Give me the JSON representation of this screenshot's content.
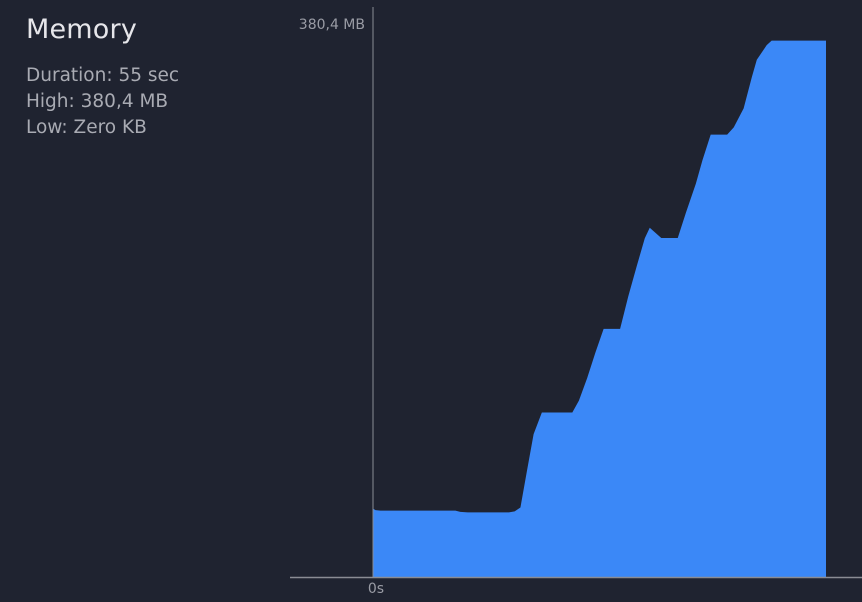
{
  "panel": {
    "title": "Memory",
    "stats": [
      {
        "label": "Duration",
        "value": "55 sec",
        "text": "Duration: 55 sec"
      },
      {
        "label": "High",
        "value": "380,4 MB",
        "text": "High: 380,4 MB"
      },
      {
        "label": "Low",
        "value": "Zero KB",
        "text": "Low: Zero KB"
      }
    ]
  },
  "colors": {
    "background": "#1f2330",
    "area_fill": "#3b88f7",
    "axis": "#8a8c94",
    "title_text": "#e6e6ea",
    "stat_text": "#a9abb3"
  },
  "chart_data": {
    "type": "area",
    "title": "",
    "xlabel": "",
    "ylabel": "",
    "x_tick_labels": [
      "0s"
    ],
    "y_tick_labels": [
      "380,4 MB"
    ],
    "ylim": [
      0,
      380.4
    ],
    "xlim": [
      0,
      55
    ],
    "y_unit": "MB",
    "grid": false,
    "series": [
      {
        "x": [
          0,
          0.3,
          0.9,
          2.0,
          4.0,
          6.0,
          8.0,
          10.0,
          10.6,
          11.5,
          13.0,
          15.0,
          16.5,
          17.2,
          17.9,
          18.7,
          19.5,
          20.5,
          22.0,
          23.4,
          24.2,
          25.0,
          26.0,
          27.0,
          28.0,
          28.6,
          30.0,
          31.0,
          32.0,
          33.0,
          33.6,
          35.0,
          36.0,
          37.0,
          38.0,
          39.2,
          40.0,
          41.0,
          42.0,
          43.0,
          43.8,
          45.0,
          46.0,
          46.6,
          47.8,
          48.4,
          49.6,
          52.0,
          55.0
        ],
        "values": [
          47.2,
          46.2,
          45.8,
          45.8,
          45.8,
          45.8,
          45.8,
          45.8,
          45.0,
          44.6,
          44.6,
          44.6,
          44.6,
          45.3,
          48.0,
          73.5,
          98.6,
          113.6,
          113.6,
          113.6,
          113.6,
          121.8,
          137.3,
          154.9,
          171.3,
          171.3,
          171.3,
          193.9,
          214.2,
          233.9,
          241.1,
          234.0,
          234.0,
          234.0,
          251.6,
          271.6,
          287.7,
          305.4,
          305.4,
          305.4,
          310.4,
          323.5,
          345.2,
          357.1,
          367.2,
          370.3,
          370.3,
          370.3,
          370.3
        ]
      }
    ]
  }
}
